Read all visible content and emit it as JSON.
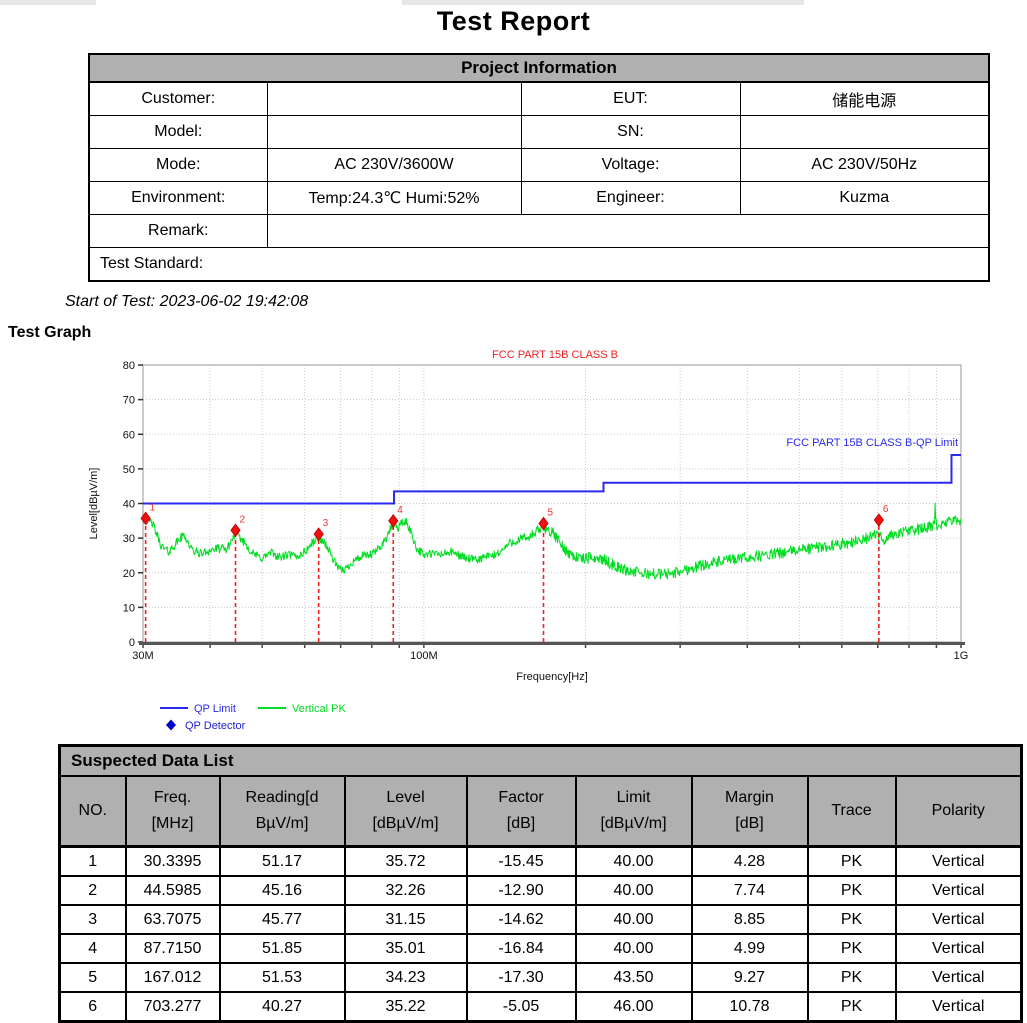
{
  "page": {
    "title": "Test Report"
  },
  "project_info": {
    "header": "Project Information",
    "rows": [
      {
        "label": "Customer:",
        "value": "",
        "label2": "EUT:",
        "value2": "储能电源"
      },
      {
        "label": "Model:",
        "value": "",
        "label2": "SN:",
        "value2": ""
      },
      {
        "label": "Mode:",
        "value": "AC 230V/3600W",
        "label2": "Voltage:",
        "value2": "AC 230V/50Hz"
      },
      {
        "label": "Environment:",
        "value": "Temp:24.3℃  Humi:52%",
        "label2": "Engineer:",
        "value2": "Kuzma"
      },
      {
        "label": "Remark:",
        "value": ""
      },
      {
        "label": "Test Standard:"
      }
    ]
  },
  "start_of_test": "Start of Test: 2023-06-02 19:42:08",
  "test_graph_heading": "Test Graph",
  "chart_data": {
    "type": "line",
    "title": "FCC PART 15B CLASS B",
    "xlabel": "Frequency[Hz]",
    "ylabel": "Level[dBµV/m]",
    "x_scale": "log",
    "x_range_mhz": [
      30,
      1000
    ],
    "ylim": [
      0,
      80
    ],
    "y_ticks": [
      0,
      10,
      20,
      30,
      40,
      50,
      60,
      70,
      80
    ],
    "x_ticks": [
      {
        "mhz": 30,
        "label": "30M"
      },
      {
        "mhz": 100,
        "label": "100M"
      },
      {
        "mhz": 1000,
        "label": "1G"
      }
    ],
    "x_gridlines_mhz": [
      30,
      40,
      50,
      60,
      70,
      80,
      90,
      100,
      200,
      300,
      400,
      500,
      600,
      700,
      800,
      900,
      1000
    ],
    "grid": true,
    "limit_label": "FCC PART 15B CLASS B-QP Limit",
    "limit_series": {
      "name": "QP Limit",
      "color": "#2a2aee",
      "segments_mhz_db": [
        [
          30,
          40
        ],
        [
          88,
          40
        ],
        [
          88,
          43.5
        ],
        [
          216,
          43.5
        ],
        [
          216,
          46
        ],
        [
          960,
          46
        ],
        [
          960,
          54
        ],
        [
          1000,
          54
        ]
      ]
    },
    "pk_series": {
      "name": "Vertical PK",
      "color": "#00dd22",
      "noise_db": 1.25,
      "anchors_mhz_db": [
        [
          30,
          35.5
        ],
        [
          31.2,
          34.5
        ],
        [
          32.5,
          27.5
        ],
        [
          33.5,
          26
        ],
        [
          35,
          29.5
        ],
        [
          35.8,
          31
        ],
        [
          37,
          26.5
        ],
        [
          38.5,
          25.5
        ],
        [
          40,
          26.5
        ],
        [
          41.5,
          27
        ],
        [
          43,
          26.8
        ],
        [
          44.6,
          31.5
        ],
        [
          46.5,
          28.5
        ],
        [
          48,
          25.5
        ],
        [
          50,
          24.2
        ],
        [
          52,
          25.8
        ],
        [
          54,
          24.4
        ],
        [
          56,
          25.2
        ],
        [
          58,
          24.6
        ],
        [
          60,
          26
        ],
        [
          62,
          28.6
        ],
        [
          63.7,
          30.3
        ],
        [
          65.5,
          28.5
        ],
        [
          67.5,
          24.5
        ],
        [
          69.5,
          20.8
        ],
        [
          71.5,
          21
        ],
        [
          74,
          23.5
        ],
        [
          77,
          24.8
        ],
        [
          80,
          25.2
        ],
        [
          83,
          27.5
        ],
        [
          85.5,
          30.5
        ],
        [
          87.7,
          34.3
        ],
        [
          89.5,
          33
        ],
        [
          91,
          34.5
        ],
        [
          93,
          34.5
        ],
        [
          95,
          31
        ],
        [
          97,
          27
        ],
        [
          100,
          25.2
        ],
        [
          104,
          25.5
        ],
        [
          108,
          25.3
        ],
        [
          112,
          26
        ],
        [
          116,
          25.2
        ],
        [
          120,
          24.2
        ],
        [
          125,
          23.6
        ],
        [
          130,
          24.6
        ],
        [
          135,
          25
        ],
        [
          140,
          26.5
        ],
        [
          145,
          28.8
        ],
        [
          150,
          29.3
        ],
        [
          155,
          30
        ],
        [
          160,
          31
        ],
        [
          164,
          32.5
        ],
        [
          167,
          33.3
        ],
        [
          171,
          32.3
        ],
        [
          176,
          30.5
        ],
        [
          182,
          27
        ],
        [
          190,
          24.8
        ],
        [
          198,
          24
        ],
        [
          207,
          24.4
        ],
        [
          216,
          23.8
        ],
        [
          228,
          21.8
        ],
        [
          240,
          20.6
        ],
        [
          255,
          19.8
        ],
        [
          272,
          19.6
        ],
        [
          290,
          19.8
        ],
        [
          310,
          21
        ],
        [
          330,
          22.3
        ],
        [
          355,
          23.2
        ],
        [
          380,
          23.9
        ],
        [
          410,
          24.6
        ],
        [
          440,
          25.2
        ],
        [
          470,
          25.9
        ],
        [
          500,
          26.6
        ],
        [
          535,
          27.2
        ],
        [
          570,
          27.8
        ],
        [
          605,
          28.4
        ],
        [
          640,
          29.2
        ],
        [
          675,
          30.2
        ],
        [
          700,
          31.2
        ],
        [
          710,
          30
        ],
        [
          720,
          29.6
        ],
        [
          735,
          30.6
        ],
        [
          760,
          31.3
        ],
        [
          790,
          31.9
        ],
        [
          820,
          32.4
        ],
        [
          850,
          32.8
        ],
        [
          880,
          33.2
        ],
        [
          893,
          34
        ],
        [
          895,
          40.5
        ],
        [
          897,
          34
        ],
        [
          910,
          33.6
        ],
        [
          930,
          34.2
        ],
        [
          950,
          34.6
        ],
        [
          975,
          35
        ],
        [
          1000,
          35.3
        ]
      ]
    },
    "markers": [
      {
        "no": "1",
        "mhz": 30.3395,
        "db": 35.72
      },
      {
        "no": "2",
        "mhz": 44.5985,
        "db": 32.26
      },
      {
        "no": "3",
        "mhz": 63.7075,
        "db": 31.15
      },
      {
        "no": "4",
        "mhz": 87.715,
        "db": 35.01
      },
      {
        "no": "5",
        "mhz": 167.012,
        "db": 34.23
      },
      {
        "no": "6",
        "mhz": 703.277,
        "db": 35.22
      }
    ],
    "marker_color": "#ee1111",
    "legend": [
      {
        "swatch": "line",
        "color": "#2a2aee",
        "label": "QP Limit"
      },
      {
        "swatch": "line",
        "color": "#00dd22",
        "label": "Vertical PK"
      },
      {
        "swatch": "diamond",
        "color": "#0000cc",
        "label": "QP Detector"
      }
    ],
    "legend_position": "bottom-left"
  },
  "suspected": {
    "header": "Suspected Data List",
    "columns": [
      [
        "NO.",
        ""
      ],
      [
        "Freq.",
        "[MHz]"
      ],
      [
        "Reading[d",
        "BµV/m]"
      ],
      [
        "Level",
        "[dBµV/m]"
      ],
      [
        "Factor",
        "[dB]"
      ],
      [
        "Limit",
        "[dBµV/m]"
      ],
      [
        "Margin",
        "[dB]"
      ],
      [
        "Trace",
        ""
      ],
      [
        "Polarity",
        ""
      ]
    ],
    "rows": [
      [
        "1",
        "30.3395",
        "51.17",
        "35.72",
        "-15.45",
        "40.00",
        "4.28",
        "PK",
        "Vertical"
      ],
      [
        "2",
        "44.5985",
        "45.16",
        "32.26",
        "-12.90",
        "40.00",
        "7.74",
        "PK",
        "Vertical"
      ],
      [
        "3",
        "63.7075",
        "45.77",
        "31.15",
        "-14.62",
        "40.00",
        "8.85",
        "PK",
        "Vertical"
      ],
      [
        "4",
        "87.7150",
        "51.85",
        "35.01",
        "-16.84",
        "40.00",
        "4.99",
        "PK",
        "Vertical"
      ],
      [
        "5",
        "167.012",
        "51.53",
        "34.23",
        "-17.30",
        "43.50",
        "9.27",
        "PK",
        "Vertical"
      ],
      [
        "6",
        "703.277",
        "40.27",
        "35.22",
        "-5.05",
        "46.00",
        "10.78",
        "PK",
        "Vertical"
      ]
    ]
  }
}
